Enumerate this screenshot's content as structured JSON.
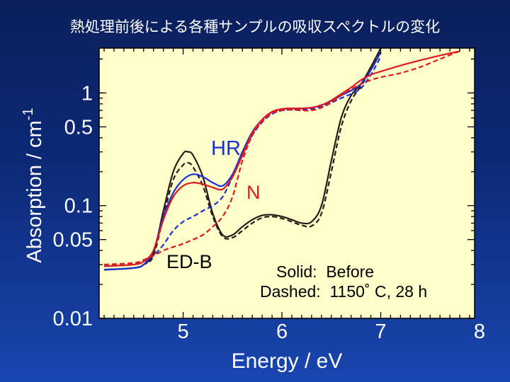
{
  "page_title": "熱処理前後による各種サンプルの吸収スペクトルの変化",
  "colors": {
    "background_top": "#0a1f5c",
    "background_bottom": "#1846b0",
    "plot_background": "#ffffcc",
    "ED-B": "#2b1a14",
    "HR": "#1a2fd6",
    "N": "#e01a1a"
  },
  "chart_data": {
    "type": "line",
    "xlabel": "Energy / eV",
    "ylabel": "Absorption / cm",
    "ylabel_superscript": "-1",
    "x_scale": "linear",
    "y_scale": "log",
    "xlim": [
      4.15,
      7.95
    ],
    "ylim": [
      0.01,
      2.5
    ],
    "x_ticks": [
      5,
      6,
      7,
      8
    ],
    "x_tick_labels": [
      "5",
      "6",
      "7",
      "8"
    ],
    "y_ticks": [
      0.01,
      0.05,
      0.1,
      0.5,
      1
    ],
    "y_tick_labels": [
      "0.01",
      "0.05",
      "0.1",
      "0.5",
      "1"
    ],
    "grid": false,
    "series": [
      {
        "name": "ED-B",
        "color": "#2b1a14",
        "style": "solid",
        "x": [
          4.2,
          4.5,
          4.6,
          4.7,
          4.8,
          4.9,
          5.0,
          5.05,
          5.1,
          5.2,
          5.3,
          5.4,
          5.5,
          5.6,
          5.7,
          5.8,
          5.9,
          6.0,
          6.1,
          6.2,
          6.3,
          6.4,
          6.5,
          6.6,
          6.7,
          6.8,
          6.9,
          7.0
        ],
        "y": [
          0.027,
          0.028,
          0.03,
          0.038,
          0.09,
          0.2,
          0.29,
          0.3,
          0.28,
          0.18,
          0.085,
          0.055,
          0.055,
          0.065,
          0.075,
          0.082,
          0.083,
          0.08,
          0.075,
          0.07,
          0.072,
          0.1,
          0.25,
          0.6,
          0.95,
          1.2,
          1.7,
          2.5
        ]
      },
      {
        "name": "ED-B",
        "color": "#2b1a14",
        "style": "dashed",
        "x": [
          4.2,
          4.5,
          4.6,
          4.7,
          4.8,
          4.9,
          5.0,
          5.05,
          5.1,
          5.2,
          5.3,
          5.4,
          5.5,
          5.6,
          5.7,
          5.8,
          5.9,
          6.0,
          6.1,
          6.2,
          6.3,
          6.4,
          6.5,
          6.6,
          6.7,
          6.8,
          6.9,
          7.0
        ],
        "y": [
          0.027,
          0.028,
          0.03,
          0.036,
          0.08,
          0.17,
          0.23,
          0.24,
          0.22,
          0.15,
          0.08,
          0.053,
          0.052,
          0.06,
          0.07,
          0.078,
          0.08,
          0.077,
          0.072,
          0.067,
          0.066,
          0.085,
          0.2,
          0.5,
          0.85,
          1.15,
          1.6,
          2.4
        ]
      },
      {
        "name": "HR",
        "color": "#1a2fd6",
        "style": "solid",
        "x": [
          4.2,
          4.5,
          4.6,
          4.7,
          4.8,
          4.9,
          5.0,
          5.1,
          5.2,
          5.3,
          5.4,
          5.5,
          5.6,
          5.7,
          5.8,
          5.9,
          6.0,
          6.1,
          6.2,
          6.3,
          6.4,
          6.5,
          6.6,
          6.7,
          6.8,
          6.9,
          7.0
        ],
        "y": [
          0.027,
          0.028,
          0.03,
          0.04,
          0.08,
          0.13,
          0.17,
          0.19,
          0.18,
          0.16,
          0.15,
          0.19,
          0.3,
          0.45,
          0.58,
          0.68,
          0.72,
          0.73,
          0.73,
          0.74,
          0.78,
          0.85,
          0.95,
          1.05,
          1.2,
          1.6,
          2.3
        ]
      },
      {
        "name": "HR",
        "color": "#1a2fd6",
        "style": "dashed",
        "x": [
          4.2,
          4.5,
          4.6,
          4.7,
          4.8,
          4.9,
          5.0,
          5.1,
          5.2,
          5.3,
          5.4,
          5.5,
          5.6,
          5.7,
          5.8,
          5.9,
          6.0,
          6.1,
          6.2,
          6.3,
          6.4,
          6.5,
          6.6,
          6.7,
          6.8,
          6.9,
          7.0
        ],
        "y": [
          0.029,
          0.03,
          0.032,
          0.036,
          0.045,
          0.06,
          0.072,
          0.08,
          0.09,
          0.1,
          0.12,
          0.18,
          0.28,
          0.42,
          0.55,
          0.65,
          0.7,
          0.71,
          0.71,
          0.72,
          0.76,
          0.82,
          0.9,
          0.98,
          1.1,
          1.45,
          2.1
        ]
      },
      {
        "name": "N",
        "color": "#e01a1a",
        "style": "solid",
        "x": [
          4.2,
          4.5,
          4.6,
          4.7,
          4.8,
          4.9,
          5.0,
          5.1,
          5.2,
          5.3,
          5.4,
          5.5,
          5.6,
          5.7,
          5.8,
          5.9,
          6.0,
          6.1,
          6.2,
          6.3,
          6.4,
          6.5,
          6.6,
          6.7,
          6.8,
          6.9,
          7.0,
          7.2,
          7.4,
          7.6,
          7.8
        ],
        "y": [
          0.029,
          0.03,
          0.032,
          0.04,
          0.075,
          0.12,
          0.15,
          0.16,
          0.155,
          0.145,
          0.14,
          0.18,
          0.28,
          0.44,
          0.58,
          0.68,
          0.72,
          0.73,
          0.73,
          0.74,
          0.78,
          0.86,
          0.98,
          1.12,
          1.3,
          1.45,
          1.55,
          1.75,
          1.95,
          2.15,
          2.35
        ]
      },
      {
        "name": "N",
        "color": "#e01a1a",
        "style": "dashed",
        "x": [
          4.2,
          4.5,
          4.6,
          4.7,
          4.8,
          4.9,
          5.0,
          5.1,
          5.2,
          5.3,
          5.4,
          5.5,
          5.6,
          5.7,
          5.8,
          5.9,
          6.0,
          6.1,
          6.2,
          6.3,
          6.4,
          6.5,
          6.6,
          6.7,
          6.8,
          6.9,
          7.0,
          7.2,
          7.4,
          7.6,
          7.8
        ],
        "y": [
          0.03,
          0.031,
          0.033,
          0.036,
          0.04,
          0.043,
          0.046,
          0.05,
          0.055,
          0.065,
          0.08,
          0.12,
          0.25,
          0.42,
          0.56,
          0.66,
          0.7,
          0.71,
          0.7,
          0.7,
          0.74,
          0.82,
          0.95,
          1.08,
          1.2,
          1.3,
          1.38,
          1.5,
          1.7,
          2.0,
          2.35
        ]
      }
    ],
    "annotations": [
      {
        "text": "HR",
        "color": "#1a2fd6"
      },
      {
        "text": "N",
        "color": "#e01a1a"
      },
      {
        "text": "ED-B",
        "color": "#000000"
      },
      {
        "text": "Solid:  Before",
        "color": "#000000"
      },
      {
        "text": "Dashed:  1150˚ C, 28 h",
        "color": "#000000"
      }
    ]
  }
}
